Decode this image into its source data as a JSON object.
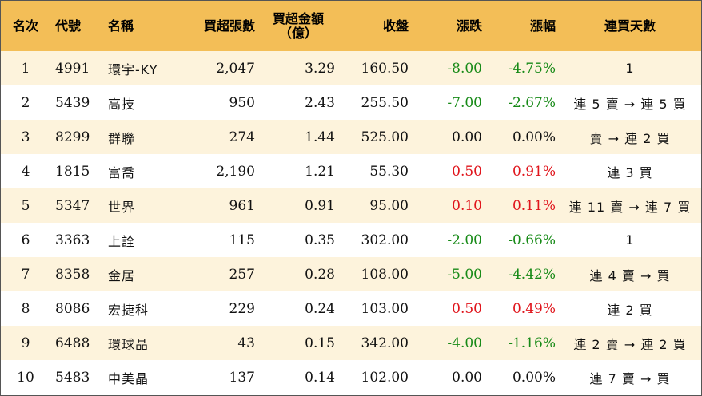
{
  "colors": {
    "header_bg": "#f3be57",
    "row_odd_bg": "#fdf3dc",
    "row_even_bg": "#ffffff",
    "up": "#e0141b",
    "down": "#178a17",
    "flat": "#111111"
  },
  "header": {
    "rank": "名次",
    "code": "代號",
    "name": "名稱",
    "net_buy_lots": "買超張數",
    "net_buy_amount_line1": "買超金額",
    "net_buy_amount_line2": "（億）",
    "close": "收盤",
    "change": "漲跌",
    "change_pct": "漲幅",
    "consecutive_days": "連買天數"
  },
  "rows": [
    {
      "rank": "1",
      "code": "4991",
      "name": "環宇-KY",
      "lots": "2,047",
      "amount": "3.29",
      "close": "160.50",
      "change": "-8.00",
      "change_pct": "-4.75%",
      "trend": "down",
      "days": "1"
    },
    {
      "rank": "2",
      "code": "5439",
      "name": "高技",
      "lots": "950",
      "amount": "2.43",
      "close": "255.50",
      "change": "-7.00",
      "change_pct": "-2.67%",
      "trend": "down",
      "days": "連 5 賣 → 連 5 買"
    },
    {
      "rank": "3",
      "code": "8299",
      "name": "群聯",
      "lots": "274",
      "amount": "1.44",
      "close": "525.00",
      "change": "0.00",
      "change_pct": "0.00%",
      "trend": "flat",
      "days": "賣 → 連 2 買"
    },
    {
      "rank": "4",
      "code": "1815",
      "name": "富喬",
      "lots": "2,190",
      "amount": "1.21",
      "close": "55.30",
      "change": "0.50",
      "change_pct": "0.91%",
      "trend": "up",
      "days": "連 3 買"
    },
    {
      "rank": "5",
      "code": "5347",
      "name": "世界",
      "lots": "961",
      "amount": "0.91",
      "close": "95.00",
      "change": "0.10",
      "change_pct": "0.11%",
      "trend": "up",
      "days": "連 11 賣 → 連 7 買"
    },
    {
      "rank": "6",
      "code": "3363",
      "name": "上詮",
      "lots": "115",
      "amount": "0.35",
      "close": "302.00",
      "change": "-2.00",
      "change_pct": "-0.66%",
      "trend": "down",
      "days": "1"
    },
    {
      "rank": "7",
      "code": "8358",
      "name": "金居",
      "lots": "257",
      "amount": "0.28",
      "close": "108.00",
      "change": "-5.00",
      "change_pct": "-4.42%",
      "trend": "down",
      "days": "連 4 賣 → 買"
    },
    {
      "rank": "8",
      "code": "8086",
      "name": "宏捷科",
      "lots": "229",
      "amount": "0.24",
      "close": "103.00",
      "change": "0.50",
      "change_pct": "0.49%",
      "trend": "up",
      "days": "連 2 買"
    },
    {
      "rank": "9",
      "code": "6488",
      "name": "環球晶",
      "lots": "43",
      "amount": "0.15",
      "close": "342.00",
      "change": "-4.00",
      "change_pct": "-1.16%",
      "trend": "down",
      "days": "連 2 賣 → 連 2 買"
    },
    {
      "rank": "10",
      "code": "5483",
      "name": "中美晶",
      "lots": "137",
      "amount": "0.14",
      "close": "102.00",
      "change": "0.00",
      "change_pct": "0.00%",
      "trend": "flat",
      "days": "連 7 賣 → 買"
    }
  ]
}
